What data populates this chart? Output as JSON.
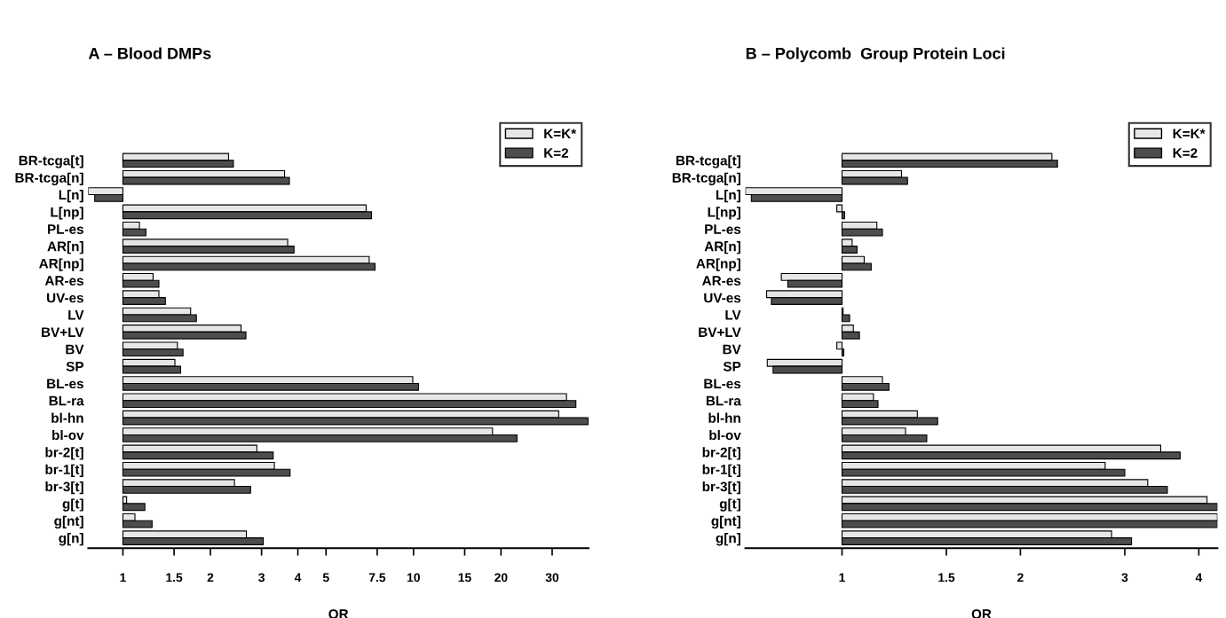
{
  "chart_data": [
    {
      "type": "bar",
      "orientation": "horizontal",
      "title": "A – Blood DMPs",
      "xlabel": "OR",
      "log": "x",
      "grid": false,
      "legend": "top right",
      "categories": [
        "BR-tcga[t]",
        "BR-tcga[n]",
        "L[n]",
        "L[np]",
        "PL-es",
        "AR[n]",
        "AR[np]",
        "AR-es",
        "UV-es",
        "LV",
        "BV+LV",
        "BV",
        "SP",
        "BL-es",
        "BL-ra",
        "bl-hn",
        "bl-ov",
        "br-2[t]",
        "br-1[t]",
        "br-3[t]",
        "g[t]",
        "g[nt]",
        "g[n]"
      ],
      "xlim": [
        0.76,
        40
      ],
      "xticks": [
        1,
        1.5,
        2,
        3,
        4,
        5,
        7.5,
        10,
        15,
        20,
        30
      ],
      "series": [
        {
          "name": "K=K*",
          "color": "#e6e6e6",
          "base": [
            1,
            1,
            1,
            1,
            1,
            1,
            1,
            1,
            1,
            1,
            1,
            1,
            1,
            1,
            1,
            1,
            1,
            1,
            1,
            1,
            1,
            1,
            1
          ],
          "values": [
            1.31,
            2.6,
            -0.24,
            5.87,
            0.14,
            2.69,
            6.04,
            0.27,
            0.33,
            0.71,
            1.55,
            0.54,
            0.51,
            8.94,
            32.6,
            30.6,
            17.7,
            1.89,
            2.32,
            1.42,
            0.03,
            0.1,
            1.66
          ]
        },
        {
          "name": "K=2",
          "color": "#4d4d4d",
          "base": [
            1,
            1,
            1,
            1,
            1,
            1,
            1,
            1,
            1,
            1,
            1,
            1,
            1,
            1,
            1,
            1,
            1,
            1,
            1,
            1,
            1,
            1,
            1
          ],
          "values": [
            1.4,
            2.74,
            -0.2,
            6.17,
            0.2,
            2.88,
            6.37,
            0.33,
            0.4,
            0.79,
            1.65,
            0.61,
            0.58,
            9.4,
            35.2,
            38.9,
            21.7,
            2.29,
            2.76,
            1.75,
            0.19,
            0.26,
            2.04
          ]
        }
      ]
    },
    {
      "type": "bar",
      "orientation": "horizontal",
      "title": "B – Polycomb  Group Protein Loci",
      "xlabel": "OR",
      "log": "x",
      "grid": false,
      "legend": "top right",
      "categories": [
        "BR-tcga[t]",
        "BR-tcga[n]",
        "L[n]",
        "L[np]",
        "PL-es",
        "AR[n]",
        "AR[np]",
        "AR-es",
        "UV-es",
        "LV",
        "BV+LV",
        "BV",
        "SP",
        "BL-es",
        "BL-ra",
        "bl-hn",
        "bl-ov",
        "br-2[t]",
        "br-1[t]",
        "br-3[t]",
        "g[t]",
        "g[nt]",
        "g[n]"
      ],
      "xlim": [
        0.687,
        4.3
      ],
      "xticks": [
        1,
        1.5,
        2,
        3,
        4
      ],
      "series": [
        {
          "name": "K=K*",
          "color": "#e6e6e6",
          "base": [
            1,
            1,
            1,
            1,
            1,
            1,
            1,
            1,
            1,
            1,
            1,
            1,
            1,
            1,
            1,
            1,
            1,
            1,
            1,
            1,
            1,
            1,
            1
          ],
          "values": [
            1.26,
            0.26,
            -0.313,
            -0.02,
            0.145,
            0.04,
            0.09,
            -0.21,
            -0.254,
            0.004,
            0.045,
            -0.02,
            -0.252,
            0.17,
            0.13,
            0.34,
            0.28,
            2.45,
            1.78,
            2.28,
            3.13,
            3.3,
            1.85
          ]
        },
        {
          "name": "K=2",
          "color": "#4d4d4d",
          "base": [
            1,
            1,
            1,
            1,
            1,
            1,
            1,
            1,
            1,
            1,
            1,
            1,
            1,
            1,
            1,
            1,
            1,
            1,
            1,
            1,
            1,
            1,
            1
          ],
          "values": [
            1.31,
            0.29,
            -0.297,
            0.01,
            0.17,
            0.06,
            0.12,
            -0.19,
            -0.24,
            0.03,
            0.07,
            0.007,
            -0.235,
            0.2,
            0.15,
            0.45,
            0.39,
            2.72,
            2.0,
            2.54,
            3.3,
            3.3,
            2.08
          ]
        }
      ]
    }
  ]
}
